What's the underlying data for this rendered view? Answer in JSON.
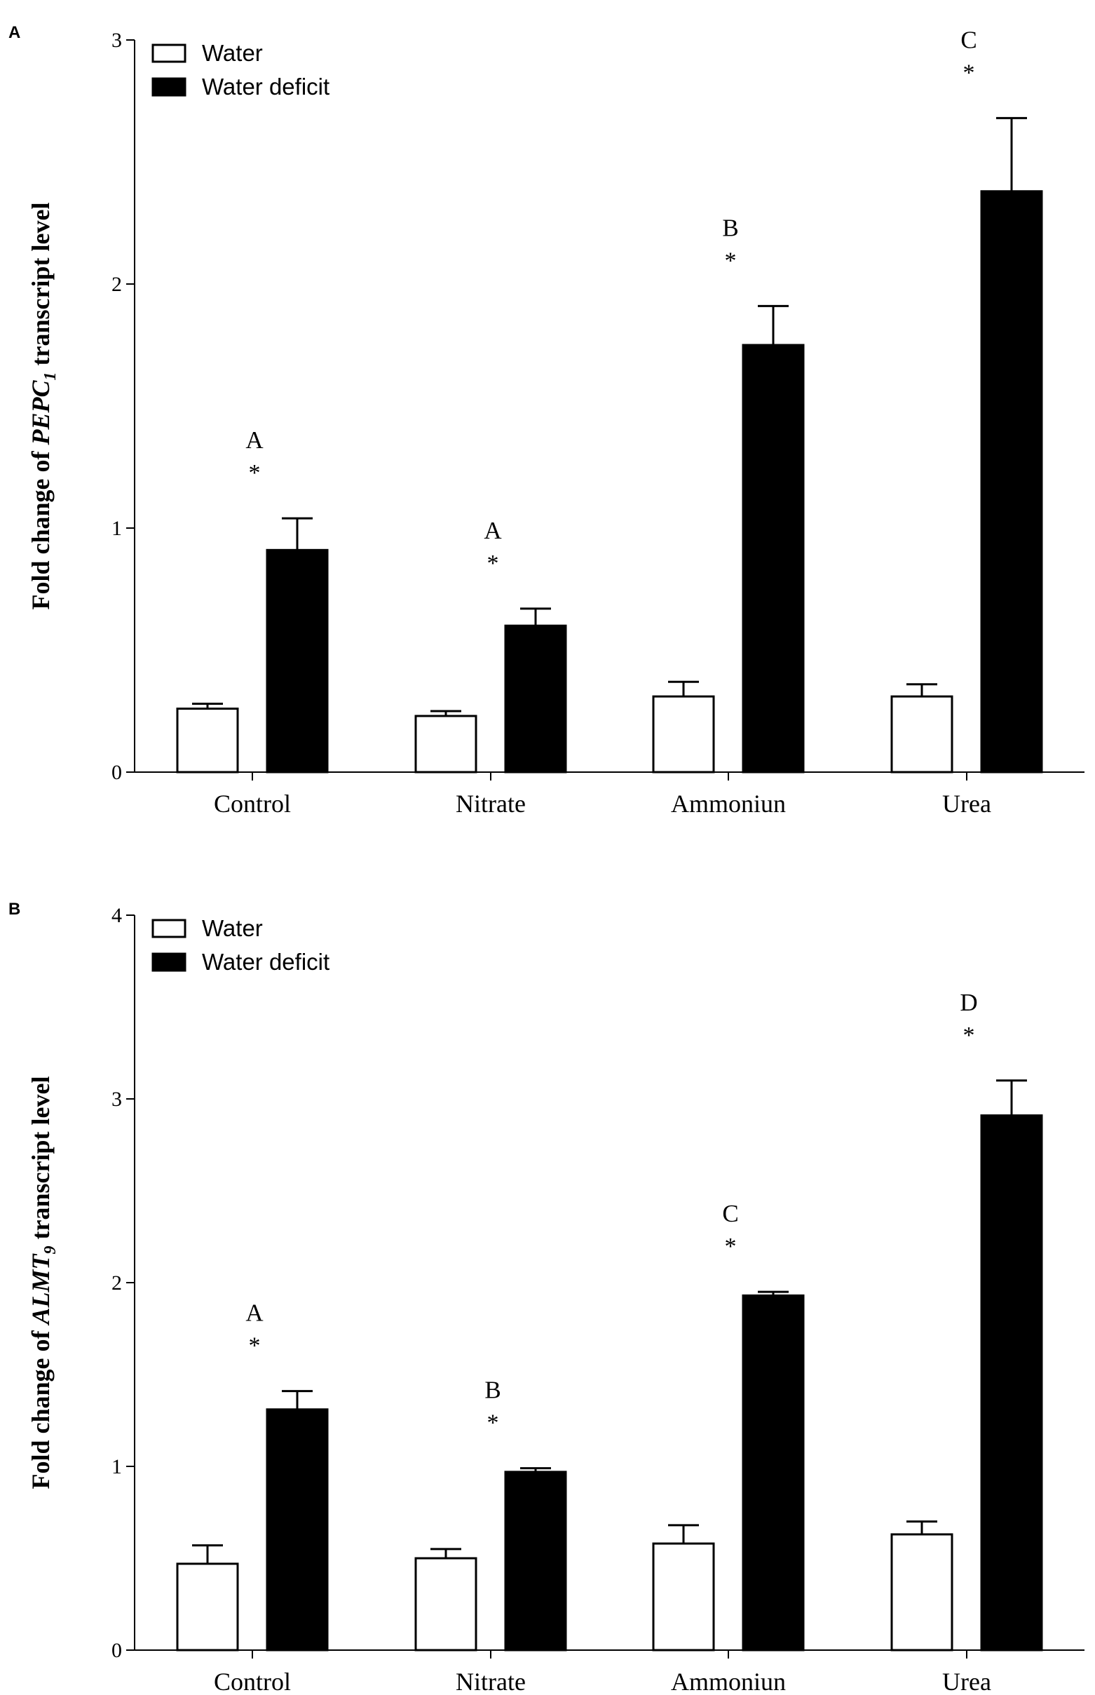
{
  "chart_data": [
    {
      "panel": "A",
      "type": "bar",
      "ylabel_prefix": "Fold change of ",
      "ylabel_gene": "PEPC",
      "ylabel_subscript": "1",
      "ylabel_suffix": " transcript level",
      "categories": [
        "Control",
        "Nitrate",
        "Ammoniun",
        "Urea"
      ],
      "ylim": [
        0,
        3
      ],
      "yticks": [
        0,
        1,
        2,
        3
      ],
      "series": [
        {
          "name": "Water",
          "fill": "#ffffff",
          "values": [
            0.26,
            0.23,
            0.31,
            0.31
          ],
          "errors": [
            0.02,
            0.02,
            0.06,
            0.05
          ]
        },
        {
          "name": "Water deficit",
          "fill": "#000000",
          "values": [
            0.91,
            0.6,
            1.75,
            2.38
          ],
          "errors": [
            0.13,
            0.07,
            0.16,
            0.3
          ]
        }
      ],
      "significance_letters": [
        "A",
        "A",
        "B",
        "C"
      ],
      "significance_marks": [
        "*",
        "*",
        "*",
        "*"
      ],
      "legend_position": "top-left"
    },
    {
      "panel": "B",
      "type": "bar",
      "ylabel_prefix": "Fold change of ",
      "ylabel_gene": "ALMT",
      "ylabel_subscript": "9",
      "ylabel_suffix": " transcript level",
      "categories": [
        "Control",
        "Nitrate",
        "Ammoniun",
        "Urea"
      ],
      "ylim": [
        0,
        4
      ],
      "yticks": [
        0,
        1,
        2,
        3,
        4
      ],
      "series": [
        {
          "name": "Water",
          "fill": "#ffffff",
          "values": [
            0.47,
            0.5,
            0.58,
            0.63
          ],
          "errors": [
            0.1,
            0.05,
            0.1,
            0.07
          ]
        },
        {
          "name": "Water deficit",
          "fill": "#000000",
          "values": [
            1.31,
            0.97,
            1.93,
            2.91
          ],
          "errors": [
            0.1,
            0.02,
            0.02,
            0.19
          ]
        }
      ],
      "significance_letters": [
        "A",
        "B",
        "C",
        "D"
      ],
      "significance_marks": [
        "*",
        "*",
        "*",
        "*"
      ],
      "legend_position": "top-left"
    }
  ]
}
